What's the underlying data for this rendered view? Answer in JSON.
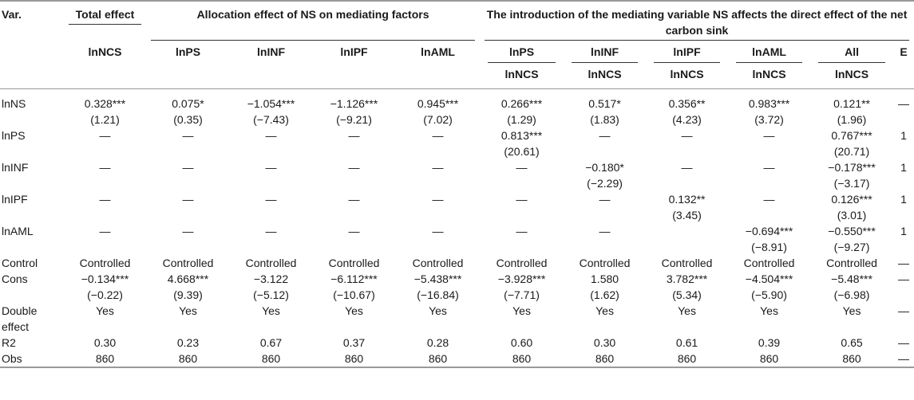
{
  "headers": {
    "var": "Var.",
    "total": "Total effect",
    "allocation": "Allocation effect of NS on mediating factors",
    "introduction": "The introduction of the mediating variable NS affects the direct effect of the net carbon sink",
    "sub": [
      "lnNCS",
      "lnPS",
      "lnINF",
      "lnIPF",
      "lnAML",
      "lnPS",
      "lnINF",
      "lnIPF",
      "lnAML",
      "All",
      "E"
    ],
    "sub2": [
      "lnNCS",
      "lnNCS",
      "lnNCS",
      "lnNCS",
      "lnNCS"
    ]
  },
  "rows": [
    {
      "label": "lnNS",
      "cells": [
        [
          "0.328***",
          "(1.21)"
        ],
        [
          "0.075*",
          "(0.35)"
        ],
        [
          "−1.054***",
          "(−7.43)"
        ],
        [
          "−1.126***",
          "(−9.21)"
        ],
        [
          "0.945***",
          "(7.02)"
        ],
        [
          "0.266***",
          "(1.29)"
        ],
        [
          "0.517*",
          "(1.83)"
        ],
        [
          "0.356**",
          "(4.23)"
        ],
        [
          "0.983***",
          "(3.72)"
        ],
        [
          "0.121**",
          "(1.96)"
        ],
        [
          "—",
          ""
        ]
      ]
    },
    {
      "label": "lnPS",
      "cells": [
        [
          "—",
          ""
        ],
        [
          "—",
          ""
        ],
        [
          "—",
          ""
        ],
        [
          "—",
          ""
        ],
        [
          "—",
          ""
        ],
        [
          "0.813***",
          "(20.61)"
        ],
        [
          "—",
          ""
        ],
        [
          "—",
          ""
        ],
        [
          "—",
          ""
        ],
        [
          "0.767***",
          "(20.71)"
        ],
        [
          "1",
          ""
        ]
      ]
    },
    {
      "label": "lnINF",
      "cells": [
        [
          "—",
          ""
        ],
        [
          "—",
          ""
        ],
        [
          "—",
          ""
        ],
        [
          "—",
          ""
        ],
        [
          "—",
          ""
        ],
        [
          "—",
          ""
        ],
        [
          "−0.180*",
          "(−2.29)"
        ],
        [
          "—",
          ""
        ],
        [
          "—",
          ""
        ],
        [
          "−0.178***",
          "(−3.17)"
        ],
        [
          "1",
          ""
        ]
      ]
    },
    {
      "label": "lnIPF",
      "cells": [
        [
          "—",
          ""
        ],
        [
          "—",
          ""
        ],
        [
          "—",
          ""
        ],
        [
          "—",
          ""
        ],
        [
          "—",
          ""
        ],
        [
          "—",
          ""
        ],
        [
          "—",
          ""
        ],
        [
          "0.132**",
          "(3.45)"
        ],
        [
          "—",
          ""
        ],
        [
          "0.126***",
          "(3.01)"
        ],
        [
          "1",
          ""
        ]
      ]
    },
    {
      "label": "lnAML",
      "cells": [
        [
          "—",
          ""
        ],
        [
          "—",
          ""
        ],
        [
          "—",
          ""
        ],
        [
          "—",
          ""
        ],
        [
          "—",
          ""
        ],
        [
          "—",
          ""
        ],
        [
          "—",
          ""
        ],
        [
          "",
          ""
        ],
        [
          "−0.694***",
          "(−8.91)"
        ],
        [
          "−0.550***",
          "(−9.27)"
        ],
        [
          "1",
          ""
        ]
      ]
    },
    {
      "label": "Control",
      "cells": [
        [
          "Controlled",
          ""
        ],
        [
          "Controlled",
          ""
        ],
        [
          "Controlled",
          ""
        ],
        [
          "Controlled",
          ""
        ],
        [
          "Controlled",
          ""
        ],
        [
          "Controlled",
          ""
        ],
        [
          "Controlled",
          ""
        ],
        [
          "Controlled",
          ""
        ],
        [
          "Controlled",
          ""
        ],
        [
          "Controlled",
          ""
        ],
        [
          "—",
          ""
        ]
      ]
    },
    {
      "label": "Cons",
      "cells": [
        [
          "−0.134***",
          "(−0.22)"
        ],
        [
          "4.668***",
          "(9.39)"
        ],
        [
          "−3.122",
          "(−5.12)"
        ],
        [
          "−6.112***",
          "(−10.67)"
        ],
        [
          "−5.438***",
          "(−16.84)"
        ],
        [
          "−3.928***",
          "(−7.71)"
        ],
        [
          "1.580",
          "(1.62)"
        ],
        [
          "3.782***",
          "(5.34)"
        ],
        [
          "−4.504***",
          "(−5.90)"
        ],
        [
          "−5.48***",
          "(−6.98)"
        ],
        [
          "—",
          ""
        ]
      ]
    },
    {
      "label": "Double effect",
      "cells": [
        [
          "Yes",
          ""
        ],
        [
          "Yes",
          ""
        ],
        [
          "Yes",
          ""
        ],
        [
          "Yes",
          ""
        ],
        [
          "Yes",
          ""
        ],
        [
          "Yes",
          ""
        ],
        [
          "Yes",
          ""
        ],
        [
          "Yes",
          ""
        ],
        [
          "Yes",
          ""
        ],
        [
          "Yes",
          ""
        ],
        [
          "—",
          ""
        ]
      ]
    },
    {
      "label": "R2",
      "cells": [
        [
          "0.30",
          ""
        ],
        [
          "0.23",
          ""
        ],
        [
          "0.67",
          ""
        ],
        [
          "0.37",
          ""
        ],
        [
          "0.28",
          ""
        ],
        [
          "0.60",
          ""
        ],
        [
          "0.30",
          ""
        ],
        [
          "0.61",
          ""
        ],
        [
          "0.39",
          ""
        ],
        [
          "0.65",
          ""
        ],
        [
          "—",
          ""
        ]
      ]
    },
    {
      "label": "Obs",
      "cells": [
        [
          "860",
          ""
        ],
        [
          "860",
          ""
        ],
        [
          "860",
          ""
        ],
        [
          "860",
          ""
        ],
        [
          "860",
          ""
        ],
        [
          "860",
          ""
        ],
        [
          "860",
          ""
        ],
        [
          "860",
          ""
        ],
        [
          "860",
          ""
        ],
        [
          "860",
          ""
        ],
        [
          "—",
          ""
        ]
      ]
    }
  ]
}
